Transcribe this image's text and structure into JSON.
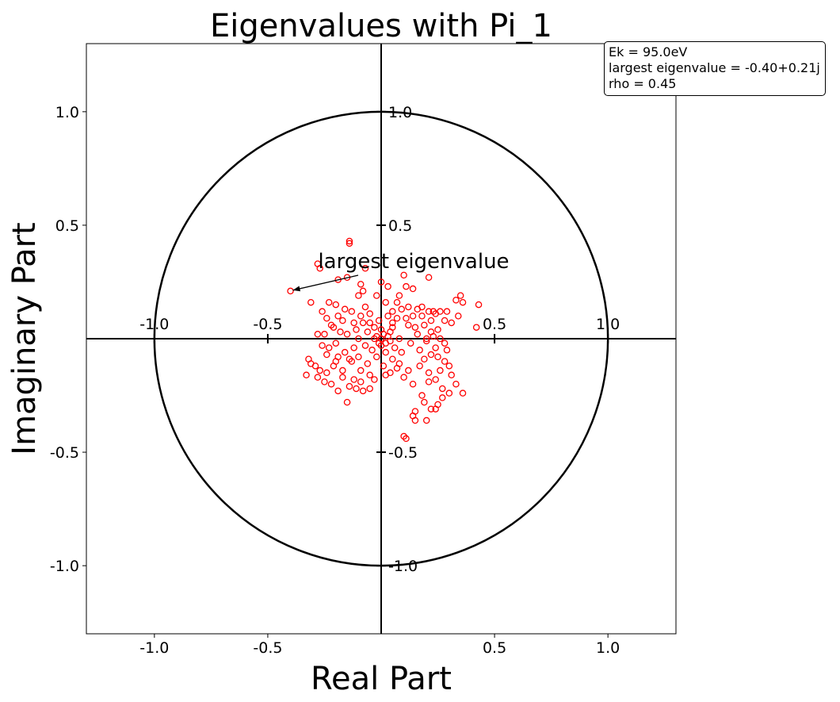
{
  "chart_data": {
    "type": "scatter",
    "title": "Eigenvalues with Pi_1",
    "xlabel": "Real Part",
    "ylabel": "Imaginary Part",
    "xlim": [
      -1.3,
      1.3
    ],
    "ylim": [
      -1.3,
      1.3
    ],
    "xticks": [
      "-1.0",
      "-0.5",
      "0.5",
      "1.0"
    ],
    "yticks": [
      "-1.0",
      "-0.5",
      "0.5",
      "1.0"
    ],
    "inner_xticks": [
      "-1.0",
      "-0.5",
      "0.5",
      "1.0"
    ],
    "inner_yticks": [
      "1.0",
      "0.5",
      "-0.5",
      "-1.0"
    ],
    "unit_circle": true,
    "grid": false,
    "marker": "hollow circle",
    "marker_color": "#ff0000",
    "annotation": {
      "text": "largest eigenvalue",
      "target": [
        -0.4,
        0.21
      ]
    },
    "info_box": {
      "line1": "Ek = 95.0eV",
      "line2": "largest eigenvalue = -0.40+0.21j",
      "line3": "rho = 0.45",
      "placement": "top-right"
    },
    "points": [
      [
        -0.4,
        0.21
      ],
      [
        -0.14,
        0.43
      ],
      [
        -0.14,
        0.42
      ],
      [
        -0.28,
        0.33
      ],
      [
        -0.27,
        0.31
      ],
      [
        -0.07,
        0.31
      ],
      [
        -0.15,
        0.27
      ],
      [
        -0.09,
        0.24
      ],
      [
        -0.19,
        0.26
      ],
      [
        0.21,
        0.27
      ],
      [
        0.1,
        0.28
      ],
      [
        0.0,
        0.25
      ],
      [
        0.03,
        0.23
      ],
      [
        -0.02,
        0.19
      ],
      [
        -0.31,
        0.16
      ],
      [
        -0.23,
        0.16
      ],
      [
        -0.2,
        0.15
      ],
      [
        -0.26,
        0.12
      ],
      [
        -0.1,
        0.19
      ],
      [
        -0.08,
        0.21
      ],
      [
        0.08,
        0.19
      ],
      [
        0.14,
        0.22
      ],
      [
        0.11,
        0.23
      ],
      [
        0.35,
        0.19
      ],
      [
        0.33,
        0.17
      ],
      [
        0.36,
        0.16
      ],
      [
        0.43,
        0.15
      ],
      [
        0.34,
        0.1
      ],
      [
        0.31,
        0.07
      ],
      [
        0.28,
        0.08
      ],
      [
        0.42,
        0.05
      ],
      [
        0.26,
        0.12
      ],
      [
        0.24,
        0.11
      ],
      [
        0.21,
        0.12
      ],
      [
        0.18,
        0.14
      ],
      [
        -0.22,
        0.06
      ],
      [
        -0.28,
        0.02
      ],
      [
        -0.25,
        0.02
      ],
      [
        -0.19,
        0.1
      ],
      [
        -0.13,
        0.12
      ],
      [
        -0.16,
        0.13
      ],
      [
        -0.07,
        0.14
      ],
      [
        -0.05,
        0.11
      ],
      [
        0.02,
        0.16
      ],
      [
        0.05,
        0.12
      ],
      [
        0.07,
        0.16
      ],
      [
        0.12,
        0.14
      ],
      [
        0.16,
        0.13
      ],
      [
        0.25,
        0.04
      ],
      [
        0.22,
        0.03
      ],
      [
        0.19,
        0.06
      ],
      [
        0.15,
        0.05
      ],
      [
        0.12,
        0.06
      ],
      [
        0.23,
        0.12
      ],
      [
        0.29,
        0.12
      ],
      [
        -0.12,
        0.07
      ],
      [
        -0.18,
        0.03
      ],
      [
        -0.23,
        -0.04
      ],
      [
        -0.26,
        -0.03
      ],
      [
        -0.32,
        -0.09
      ],
      [
        -0.29,
        -0.12
      ],
      [
        -0.31,
        -0.11
      ],
      [
        -0.27,
        -0.14
      ],
      [
        -0.33,
        -0.16
      ],
      [
        -0.28,
        -0.17
      ],
      [
        -0.24,
        -0.15
      ],
      [
        -0.21,
        -0.12
      ],
      [
        -0.25,
        -0.19
      ],
      [
        -0.22,
        -0.2
      ],
      [
        -0.19,
        -0.23
      ],
      [
        -0.15,
        -0.28
      ],
      [
        -0.17,
        -0.17
      ],
      [
        -0.14,
        -0.21
      ],
      [
        -0.11,
        -0.22
      ],
      [
        -0.12,
        -0.18
      ],
      [
        -0.08,
        -0.23
      ],
      [
        -0.05,
        -0.22
      ],
      [
        -0.03,
        -0.18
      ],
      [
        -0.09,
        -0.14
      ],
      [
        -0.13,
        -0.1
      ],
      [
        0.05,
        -0.09
      ],
      [
        0.08,
        -0.11
      ],
      [
        0.12,
        -0.14
      ],
      [
        0.14,
        -0.2
      ],
      [
        0.18,
        -0.25
      ],
      [
        0.19,
        -0.28
      ],
      [
        0.22,
        -0.31
      ],
      [
        0.25,
        -0.29
      ],
      [
        0.27,
        -0.22
      ],
      [
        0.24,
        -0.18
      ],
      [
        0.21,
        -0.19
      ],
      [
        0.26,
        -0.14
      ],
      [
        0.28,
        -0.1
      ],
      [
        0.3,
        -0.12
      ],
      [
        0.31,
        -0.16
      ],
      [
        0.33,
        -0.2
      ],
      [
        0.36,
        -0.24
      ],
      [
        0.3,
        -0.24
      ],
      [
        0.27,
        -0.26
      ],
      [
        0.24,
        -0.31
      ],
      [
        0.2,
        -0.36
      ],
      [
        0.15,
        -0.32
      ],
      [
        0.14,
        -0.34
      ],
      [
        0.15,
        -0.36
      ],
      [
        0.1,
        -0.43
      ],
      [
        0.11,
        -0.44
      ],
      [
        0.22,
        -0.07
      ],
      [
        0.19,
        -0.09
      ],
      [
        0.17,
        -0.05
      ],
      [
        0.2,
        -0.01
      ],
      [
        0.23,
        0.01
      ],
      [
        0.26,
        0.0
      ],
      [
        0.28,
        -0.02
      ],
      [
        0.24,
        -0.04
      ],
      [
        0.2,
        0.0
      ],
      [
        -0.1,
        0.0
      ],
      [
        -0.06,
        0.03
      ],
      [
        -0.03,
        0.05
      ],
      [
        0.04,
        0.03
      ],
      [
        0.08,
        0.0
      ],
      [
        0.06,
        -0.04
      ],
      [
        0.02,
        -0.06
      ],
      [
        -0.04,
        -0.05
      ],
      [
        -0.07,
        -0.03
      ],
      [
        0.0,
        0.0
      ],
      [
        0.01,
        0.02
      ],
      [
        -0.01,
        -0.02
      ],
      [
        0.03,
        0.01
      ],
      [
        -0.02,
        0.01
      ],
      [
        0.02,
        -0.02
      ],
      [
        -0.03,
        0.0
      ],
      [
        0.04,
        -0.01
      ],
      [
        0.0,
        0.04
      ],
      [
        0.0,
        -0.03
      ],
      [
        0.05,
        0.05
      ],
      [
        -0.05,
        0.07
      ],
      [
        -0.08,
        0.07
      ],
      [
        -0.11,
        0.04
      ],
      [
        -0.15,
        0.02
      ],
      [
        -0.12,
        -0.04
      ],
      [
        -0.16,
        -0.06
      ],
      [
        -0.19,
        -0.08
      ],
      [
        -0.14,
        -0.09
      ],
      [
        -0.1,
        -0.08
      ],
      [
        -0.06,
        -0.11
      ],
      [
        -0.02,
        -0.08
      ],
      [
        0.01,
        -0.12
      ],
      [
        0.04,
        -0.15
      ],
      [
        0.09,
        -0.06
      ],
      [
        0.13,
        -0.02
      ],
      [
        0.16,
        0.02
      ],
      [
        0.11,
        0.09
      ],
      [
        0.07,
        0.09
      ],
      [
        0.03,
        0.1
      ],
      [
        -0.01,
        0.08
      ],
      [
        -0.2,
        -0.02
      ],
      [
        -0.24,
        0.09
      ],
      [
        -0.21,
        0.05
      ],
      [
        -0.17,
        0.08
      ],
      [
        -0.09,
        0.1
      ],
      [
        0.18,
        0.1
      ],
      [
        0.14,
        0.1
      ],
      [
        0.09,
        0.13
      ],
      [
        0.05,
        0.07
      ],
      [
        0.1,
        -0.17
      ],
      [
        0.07,
        -0.13
      ],
      [
        0.02,
        -0.16
      ],
      [
        -0.05,
        -0.16
      ],
      [
        -0.09,
        -0.19
      ],
      [
        -0.17,
        -0.14
      ],
      [
        -0.2,
        -0.1
      ],
      [
        -0.24,
        -0.07
      ],
      [
        0.17,
        -0.12
      ],
      [
        0.21,
        -0.15
      ],
      [
        0.25,
        -0.08
      ],
      [
        0.29,
        -0.05
      ],
      [
        0.22,
        0.08
      ]
    ]
  }
}
